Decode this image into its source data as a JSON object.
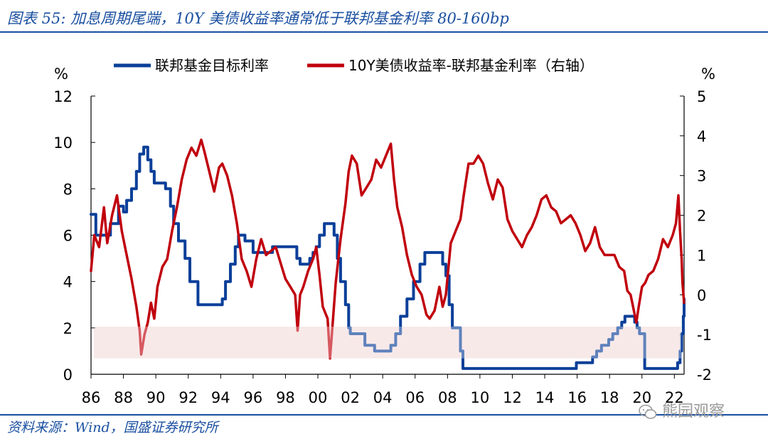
{
  "header": {
    "title": "图表 55:  加息周期尾端，10Y 美债收益率通常低于联邦基金利率 80-160bp"
  },
  "footer": {
    "source": "资料来源：Wind，国盛证券研究所",
    "watermark": "熊园观察"
  },
  "colors": {
    "fed_funds": "#0a3f99",
    "spread": "#c0000d",
    "band": "#f4dede",
    "frame_blue": "#1a4fa0"
  },
  "chart_data": {
    "type": "line",
    "y_left": {
      "unit": "%",
      "ylim": [
        0,
        12
      ],
      "ticks": [
        "0",
        "2",
        "4",
        "6",
        "8",
        "10",
        "12"
      ]
    },
    "y_right": {
      "unit": "%",
      "ylim": [
        -2,
        5
      ],
      "ticks": [
        "-2",
        "-1",
        "0",
        "1",
        "2",
        "3",
        "4",
        "5"
      ]
    },
    "x": {
      "xlim": [
        1986,
        2022.6
      ],
      "ticks": [
        "86",
        "88",
        "90",
        "92",
        "94",
        "96",
        "98",
        "00",
        "02",
        "04",
        "06",
        "08",
        "10",
        "12",
        "14",
        "16",
        "18",
        "20",
        "22"
      ],
      "tick_years": [
        1986,
        1988,
        1990,
        1992,
        1994,
        1996,
        1998,
        2000,
        2002,
        2004,
        2006,
        2008,
        2010,
        2012,
        2014,
        2016,
        2018,
        2020,
        2022
      ]
    },
    "shaded_band": {
      "axis": "right",
      "y_from": -1.6,
      "y_to": -0.8
    },
    "series": [
      {
        "name": "联邦基金目标利率",
        "axis": "left",
        "color": "#0a3f99",
        "step": true,
        "points": [
          [
            1986.0,
            6.9
          ],
          [
            1986.3,
            6.0
          ],
          [
            1987.2,
            6.5
          ],
          [
            1987.7,
            7.25
          ],
          [
            1988.0,
            7.0
          ],
          [
            1988.2,
            7.5
          ],
          [
            1988.5,
            8.0
          ],
          [
            1988.8,
            8.75
          ],
          [
            1989.0,
            9.5
          ],
          [
            1989.25,
            9.8
          ],
          [
            1989.5,
            9.25
          ],
          [
            1989.7,
            8.75
          ],
          [
            1989.9,
            8.25
          ],
          [
            1990.6,
            8.0
          ],
          [
            1990.9,
            7.25
          ],
          [
            1991.1,
            6.5
          ],
          [
            1991.4,
            5.75
          ],
          [
            1991.8,
            5.0
          ],
          [
            1992.1,
            4.0
          ],
          [
            1992.6,
            3.0
          ],
          [
            1994.1,
            3.25
          ],
          [
            1994.3,
            4.0
          ],
          [
            1994.6,
            4.75
          ],
          [
            1994.9,
            5.5
          ],
          [
            1995.1,
            6.0
          ],
          [
            1995.5,
            5.75
          ],
          [
            1996.0,
            5.25
          ],
          [
            1997.2,
            5.5
          ],
          [
            1998.7,
            5.0
          ],
          [
            1998.9,
            4.75
          ],
          [
            1999.5,
            5.0
          ],
          [
            1999.7,
            5.25
          ],
          [
            1999.9,
            5.5
          ],
          [
            2000.1,
            6.0
          ],
          [
            2000.4,
            6.5
          ],
          [
            2001.0,
            6.0
          ],
          [
            2001.2,
            5.0
          ],
          [
            2001.4,
            4.0
          ],
          [
            2001.7,
            3.0
          ],
          [
            2001.9,
            2.0
          ],
          [
            2002.0,
            1.75
          ],
          [
            2002.9,
            1.25
          ],
          [
            2003.5,
            1.0
          ],
          [
            2004.5,
            1.25
          ],
          [
            2004.8,
            1.75
          ],
          [
            2005.1,
            2.5
          ],
          [
            2005.5,
            3.25
          ],
          [
            2005.9,
            4.0
          ],
          [
            2006.3,
            4.75
          ],
          [
            2006.6,
            5.25
          ],
          [
            2007.7,
            4.75
          ],
          [
            2007.9,
            4.25
          ],
          [
            2008.1,
            3.0
          ],
          [
            2008.3,
            2.0
          ],
          [
            2008.8,
            1.0
          ],
          [
            2008.95,
            0.25
          ],
          [
            2015.95,
            0.5
          ],
          [
            2016.95,
            0.75
          ],
          [
            2017.2,
            1.0
          ],
          [
            2017.5,
            1.25
          ],
          [
            2017.95,
            1.5
          ],
          [
            2018.2,
            1.75
          ],
          [
            2018.5,
            2.0
          ],
          [
            2018.75,
            2.25
          ],
          [
            2018.95,
            2.5
          ],
          [
            2019.55,
            2.25
          ],
          [
            2019.7,
            2.0
          ],
          [
            2019.85,
            1.75
          ],
          [
            2020.17,
            0.25
          ],
          [
            2022.2,
            0.5
          ],
          [
            2022.35,
            1.0
          ],
          [
            2022.45,
            1.75
          ],
          [
            2022.55,
            2.5
          ],
          [
            2022.6,
            3.25
          ]
        ]
      },
      {
        "name": "10Y美债收益率-联邦基金利率（右轴）",
        "axis": "right",
        "color": "#c0000d",
        "step": false,
        "points": [
          [
            1986.0,
            0.6
          ],
          [
            1986.2,
            1.5
          ],
          [
            1986.5,
            1.2
          ],
          [
            1986.8,
            2.2
          ],
          [
            1987.0,
            1.3
          ],
          [
            1987.3,
            2.0
          ],
          [
            1987.6,
            2.5
          ],
          [
            1987.9,
            1.6
          ],
          [
            1988.2,
            1.0
          ],
          [
            1988.5,
            0.4
          ],
          [
            1988.8,
            -0.3
          ],
          [
            1989.0,
            -0.9
          ],
          [
            1989.1,
            -1.5
          ],
          [
            1989.3,
            -1.0
          ],
          [
            1989.5,
            -0.7
          ],
          [
            1989.7,
            -0.2
          ],
          [
            1989.9,
            -0.6
          ],
          [
            1990.1,
            0.2
          ],
          [
            1990.4,
            0.7
          ],
          [
            1990.7,
            0.9
          ],
          [
            1991.0,
            1.6
          ],
          [
            1991.3,
            2.2
          ],
          [
            1991.6,
            2.9
          ],
          [
            1991.9,
            3.4
          ],
          [
            1992.2,
            3.7
          ],
          [
            1992.5,
            3.5
          ],
          [
            1992.8,
            3.9
          ],
          [
            1993.0,
            3.6
          ],
          [
            1993.3,
            3.1
          ],
          [
            1993.6,
            2.6
          ],
          [
            1993.9,
            3.2
          ],
          [
            1994.1,
            3.3
          ],
          [
            1994.4,
            3.0
          ],
          [
            1994.7,
            2.5
          ],
          [
            1995.0,
            1.8
          ],
          [
            1995.3,
            0.9
          ],
          [
            1995.6,
            0.6
          ],
          [
            1995.9,
            0.2
          ],
          [
            1996.2,
            0.9
          ],
          [
            1996.5,
            1.4
          ],
          [
            1996.8,
            1.0
          ],
          [
            1997.1,
            1.1
          ],
          [
            1997.4,
            1.2
          ],
          [
            1997.7,
            0.8
          ],
          [
            1998.0,
            0.4
          ],
          [
            1998.3,
            0.2
          ],
          [
            1998.6,
            0.0
          ],
          [
            1998.75,
            -0.9
          ],
          [
            1998.9,
            0.0
          ],
          [
            1999.1,
            0.2
          ],
          [
            1999.4,
            0.6
          ],
          [
            1999.7,
            0.9
          ],
          [
            1999.9,
            1.2
          ],
          [
            2000.1,
            0.5
          ],
          [
            2000.3,
            -0.3
          ],
          [
            2000.6,
            -0.6
          ],
          [
            2000.75,
            -1.6
          ],
          [
            2000.9,
            -0.8
          ],
          [
            2001.1,
            0.3
          ],
          [
            2001.4,
            1.4
          ],
          [
            2001.7,
            2.3
          ],
          [
            2001.9,
            3.1
          ],
          [
            2002.1,
            3.5
          ],
          [
            2002.4,
            3.3
          ],
          [
            2002.7,
            2.5
          ],
          [
            2003.0,
            2.7
          ],
          [
            2003.3,
            2.9
          ],
          [
            2003.6,
            3.4
          ],
          [
            2003.9,
            3.2
          ],
          [
            2004.2,
            3.5
          ],
          [
            2004.5,
            3.8
          ],
          [
            2004.7,
            2.9
          ],
          [
            2004.9,
            2.2
          ],
          [
            2005.2,
            1.7
          ],
          [
            2005.5,
            1.0
          ],
          [
            2005.8,
            0.5
          ],
          [
            2006.1,
            0.2
          ],
          [
            2006.4,
            0.0
          ],
          [
            2006.7,
            -0.5
          ],
          [
            2006.9,
            -0.6
          ],
          [
            2007.2,
            -0.4
          ],
          [
            2007.5,
            0.2
          ],
          [
            2007.7,
            -0.3
          ],
          [
            2007.9,
            0.0
          ],
          [
            2008.2,
            1.3
          ],
          [
            2008.5,
            1.6
          ],
          [
            2008.8,
            1.9
          ],
          [
            2009.0,
            2.5
          ],
          [
            2009.3,
            3.3
          ],
          [
            2009.6,
            3.3
          ],
          [
            2009.9,
            3.5
          ],
          [
            2010.2,
            3.3
          ],
          [
            2010.5,
            2.8
          ],
          [
            2010.8,
            2.4
          ],
          [
            2011.1,
            2.9
          ],
          [
            2011.4,
            2.7
          ],
          [
            2011.7,
            1.9
          ],
          [
            2012.0,
            1.6
          ],
          [
            2012.3,
            1.4
          ],
          [
            2012.6,
            1.2
          ],
          [
            2012.9,
            1.5
          ],
          [
            2013.2,
            1.7
          ],
          [
            2013.5,
            2.0
          ],
          [
            2013.8,
            2.4
          ],
          [
            2014.1,
            2.5
          ],
          [
            2014.4,
            2.2
          ],
          [
            2014.7,
            2.1
          ],
          [
            2015.0,
            1.8
          ],
          [
            2015.3,
            1.9
          ],
          [
            2015.6,
            2.0
          ],
          [
            2015.9,
            1.8
          ],
          [
            2016.2,
            1.5
          ],
          [
            2016.5,
            1.1
          ],
          [
            2016.8,
            1.3
          ],
          [
            2017.1,
            1.7
          ],
          [
            2017.4,
            1.2
          ],
          [
            2017.7,
            1.0
          ],
          [
            2018.0,
            1.0
          ],
          [
            2018.3,
            1.0
          ],
          [
            2018.6,
            0.7
          ],
          [
            2018.9,
            0.6
          ],
          [
            2019.1,
            0.1
          ],
          [
            2019.3,
            0.0
          ],
          [
            2019.5,
            -0.4
          ],
          [
            2019.65,
            -0.7
          ],
          [
            2019.8,
            -0.3
          ],
          [
            2020.0,
            0.2
          ],
          [
            2020.2,
            0.3
          ],
          [
            2020.4,
            0.5
          ],
          [
            2020.7,
            0.6
          ],
          [
            2021.0,
            0.9
          ],
          [
            2021.3,
            1.4
          ],
          [
            2021.6,
            1.2
          ],
          [
            2021.9,
            1.5
          ],
          [
            2022.1,
            1.8
          ],
          [
            2022.25,
            2.5
          ],
          [
            2022.35,
            1.6
          ],
          [
            2022.45,
            0.9
          ],
          [
            2022.5,
            0.3
          ],
          [
            2022.6,
            -0.2
          ]
        ]
      }
    ]
  }
}
